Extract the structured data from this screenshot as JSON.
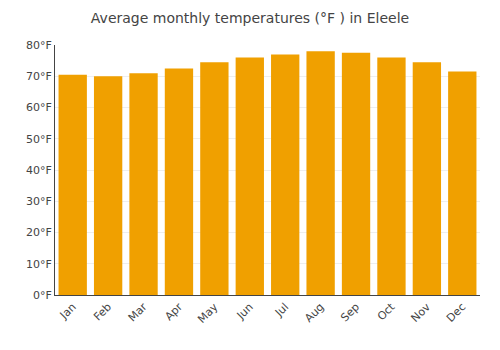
{
  "chart_data": {
    "type": "bar",
    "title": "Average monthly temperatures (°F ) in Eleele",
    "categories": [
      "Jan",
      "Feb",
      "Mar",
      "Apr",
      "May",
      "Jun",
      "Jul",
      "Aug",
      "Sep",
      "Oct",
      "Nov",
      "Dec"
    ],
    "values": [
      70.5,
      70.0,
      71.0,
      72.5,
      74.5,
      76.0,
      77.0,
      78.0,
      77.5,
      76.0,
      74.5,
      71.5
    ],
    "color": "#F0A000",
    "ylim": [
      0,
      80
    ],
    "yticks": [
      {
        "value": 0,
        "label": "0°F"
      },
      {
        "value": 10,
        "label": "10°F"
      },
      {
        "value": 20,
        "label": "20°F"
      },
      {
        "value": 30,
        "label": "30°F"
      },
      {
        "value": 40,
        "label": "40°F"
      },
      {
        "value": 50,
        "label": "50°F"
      },
      {
        "value": 60,
        "label": "60°F"
      },
      {
        "value": 70,
        "label": "70°F"
      },
      {
        "value": 80,
        "label": "80°F"
      }
    ],
    "grid": true
  }
}
